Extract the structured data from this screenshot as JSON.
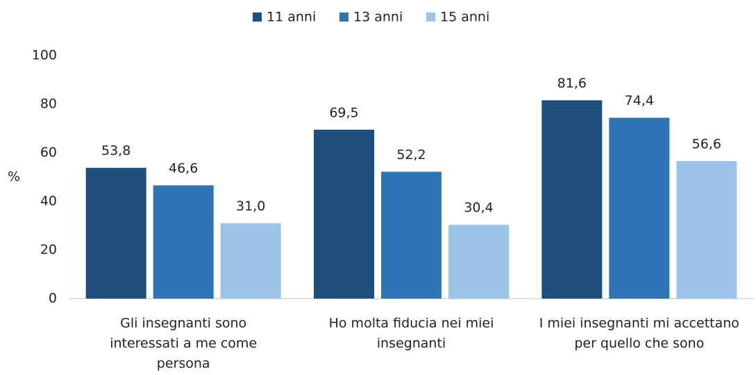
{
  "chart_data": {
    "type": "bar",
    "categories": [
      [
        "Gli insegnanti sono",
        "interessati a me come",
        "persona"
      ],
      [
        "Ho molta fiducia nei miei",
        "insegnanti"
      ],
      [
        "I miei insegnanti mi accettano",
        "per quello che sono"
      ]
    ],
    "series": [
      {
        "name": "11 anni",
        "color": "#1f4e79",
        "values": [
          53.8,
          69.5,
          81.6
        ],
        "value_labels": [
          "53,8",
          "69,5",
          "81,6"
        ]
      },
      {
        "name": "13 anni",
        "color": "#2e75b6",
        "values": [
          46.6,
          52.2,
          74.4
        ],
        "value_labels": [
          "46,6",
          "52,2",
          "74,4"
        ]
      },
      {
        "name": "15 anni",
        "color": "#9dc3e6",
        "values": [
          31.0,
          30.4,
          56.6
        ],
        "value_labels": [
          "31,0",
          "30,4",
          "56,6"
        ]
      }
    ],
    "ylabel": "%",
    "ylim": [
      0,
      100
    ],
    "yticks": [
      0,
      20,
      40,
      60,
      80,
      100
    ],
    "grid": false,
    "legend": "top"
  }
}
